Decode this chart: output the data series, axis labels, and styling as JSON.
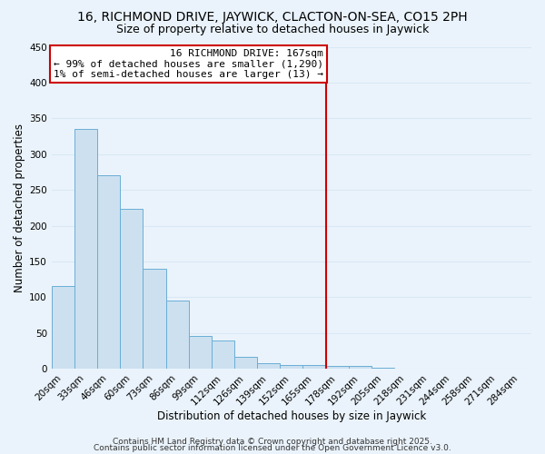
{
  "title": "16, RICHMOND DRIVE, JAYWICK, CLACTON-ON-SEA, CO15 2PH",
  "subtitle": "Size of property relative to detached houses in Jaywick",
  "xlabel": "Distribution of detached houses by size in Jaywick",
  "ylabel": "Number of detached properties",
  "categories": [
    "20sqm",
    "33sqm",
    "46sqm",
    "60sqm",
    "73sqm",
    "86sqm",
    "99sqm",
    "112sqm",
    "126sqm",
    "139sqm",
    "152sqm",
    "165sqm",
    "178sqm",
    "192sqm",
    "205sqm",
    "218sqm",
    "231sqm",
    "244sqm",
    "258sqm",
    "271sqm",
    "284sqm"
  ],
  "values": [
    115,
    335,
    270,
    223,
    140,
    95,
    46,
    40,
    17,
    8,
    5,
    5,
    4,
    4,
    1,
    0,
    0,
    0,
    0,
    0,
    0
  ],
  "bar_color": "#cce0f0",
  "bar_edge_color": "#6aaed6",
  "vline_x_index": 11,
  "vline_color": "#cc0000",
  "annotation_line1": "16 RICHMOND DRIVE: 167sqm",
  "annotation_line2": "← 99% of detached houses are smaller (1,290)",
  "annotation_line3": "1% of semi-detached houses are larger (13) →",
  "annotation_box_color": "#ffffff",
  "annotation_box_edge_color": "#cc0000",
  "ylim": [
    0,
    450
  ],
  "yticks": [
    0,
    50,
    100,
    150,
    200,
    250,
    300,
    350,
    400,
    450
  ],
  "footer_line1": "Contains HM Land Registry data © Crown copyright and database right 2025.",
  "footer_line2": "Contains public sector information licensed under the Open Government Licence v3.0.",
  "bg_color": "#eaf3fb",
  "plot_bg_color": "#eaf3fb",
  "grid_color": "#d8e8f5",
  "title_fontsize": 10,
  "subtitle_fontsize": 9,
  "axis_label_fontsize": 8.5,
  "tick_fontsize": 7.5,
  "annotation_fontsize": 8,
  "footer_fontsize": 6.5
}
